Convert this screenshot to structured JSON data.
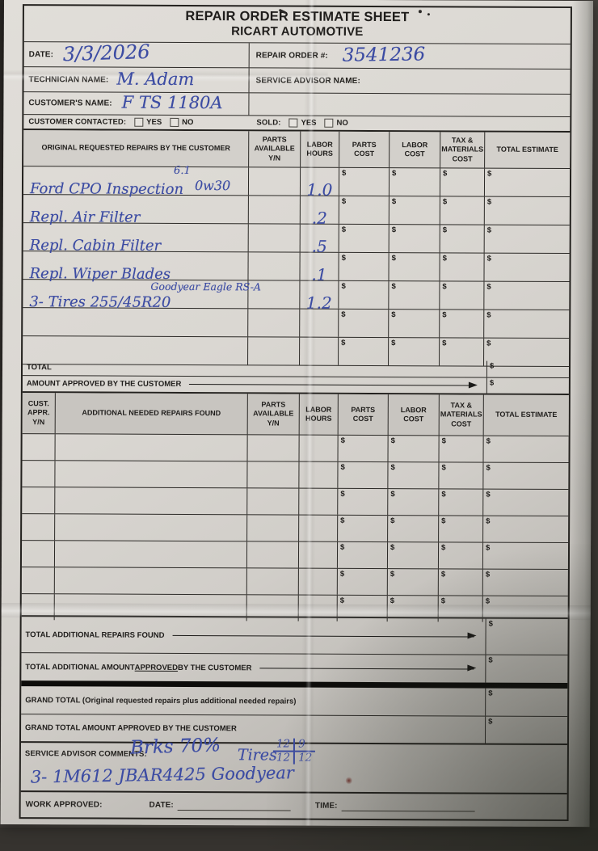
{
  "colors": {
    "ink_blue": "#3c4ca3",
    "paper": "#dad7d2",
    "form_line": "#2c2a27",
    "header_fill": "#d3d0cb",
    "header_fill_dark": "#c8c5c0",
    "photo_background": "#36332f"
  },
  "money": {
    "symbol": "$"
  },
  "header": {
    "title_line1": "REPAIR ORDER ESTIMATE SHEET",
    "title_line2": "RICART AUTOMOTIVE"
  },
  "info": {
    "date_label": "DATE:",
    "date_value": "3/3/2026",
    "repair_order_label": "REPAIR ORDER #:",
    "repair_order_value": "3541236",
    "technician_label": "TECHNICIAN NAME:",
    "technician_value": "M. Adam",
    "service_advisor_label": "SERVICE ADVISOR NAME:",
    "service_advisor_value": "",
    "customer_label": "CUSTOMER'S NAME:",
    "customer_value": "F TS 1180A",
    "customer_contacted_label": "CUSTOMER CONTACTED:",
    "sold_label": "SOLD:",
    "yes_label": "YES",
    "no_label": "NO"
  },
  "table1": {
    "headers": [
      "ORIGINAL REQUESTED REPAIRS BY THE CUSTOMER",
      "PARTS AVAILABLE Y/N",
      "LABOR HOURS",
      "PARTS COST",
      "LABOR COST",
      "TAX & MATERIALS COST",
      "TOTAL ESTIMATE"
    ],
    "rows": [
      {
        "description": "Ford CPO Inspection",
        "note_above": "6.1",
        "note_inline": "0w30",
        "labor_hours": "1.0"
      },
      {
        "description": "Repl. Air Filter",
        "note_above": "",
        "note_inline": "",
        "labor_hours": ".2"
      },
      {
        "description": "Repl. Cabin Filter",
        "note_above": "",
        "note_inline": "",
        "labor_hours": ".5"
      },
      {
        "description": "Repl. Wiper Blades",
        "note_above": "",
        "note_inline": "",
        "labor_hours": ".1"
      },
      {
        "description": "3- Tires 255/45R20",
        "note_above": "Goodyear Eagle RS-A",
        "note_inline": "",
        "labor_hours": "1.2"
      },
      {
        "description": "",
        "note_above": "",
        "note_inline": "",
        "labor_hours": ""
      },
      {
        "description": "",
        "note_above": "",
        "note_inline": "",
        "labor_hours": ""
      }
    ],
    "total_label": "TOTAL",
    "amount_approved_label": "AMOUNT APPROVED BY THE CUSTOMER"
  },
  "table2": {
    "headers": [
      "CUST. APPR. Y/N",
      "ADDITIONAL NEEDED REPAIRS FOUND",
      "PARTS AVAILABLE Y/N",
      "LABOR HOURS",
      "PARTS COST",
      "LABOR COST",
      "TAX & MATERIALS COST",
      "TOTAL ESTIMATE"
    ],
    "row_count": 7,
    "total_additional_label": "TOTAL ADDITIONAL REPAIRS FOUND",
    "total_additional_approved": {
      "prefix": "TOTAL ADDITIONAL AMOUNT ",
      "underlined": "APPROVED",
      "suffix": " BY THE CUSTOMER"
    }
  },
  "totals": {
    "grand_total_label": "GRAND TOTAL (Original requested repairs plus additional needed repairs)",
    "grand_total_approved_label": "GRAND TOTAL AMOUNT APPROVED BY THE CUSTOMER"
  },
  "comments": {
    "label": "SERVICE ADVISOR COMMENTS:",
    "brakes_note": "Brks 70%",
    "tires_label": "Tires",
    "tire_tread": {
      "top_left": "12",
      "top_right": "9",
      "bottom_left": "12",
      "bottom_right": "12"
    },
    "line2": "3- 1M612 JBAR4425 Goodyear"
  },
  "footer": {
    "work_approved_label": "WORK APPROVED:",
    "date_label": "DATE:",
    "time_label": "TIME:"
  }
}
